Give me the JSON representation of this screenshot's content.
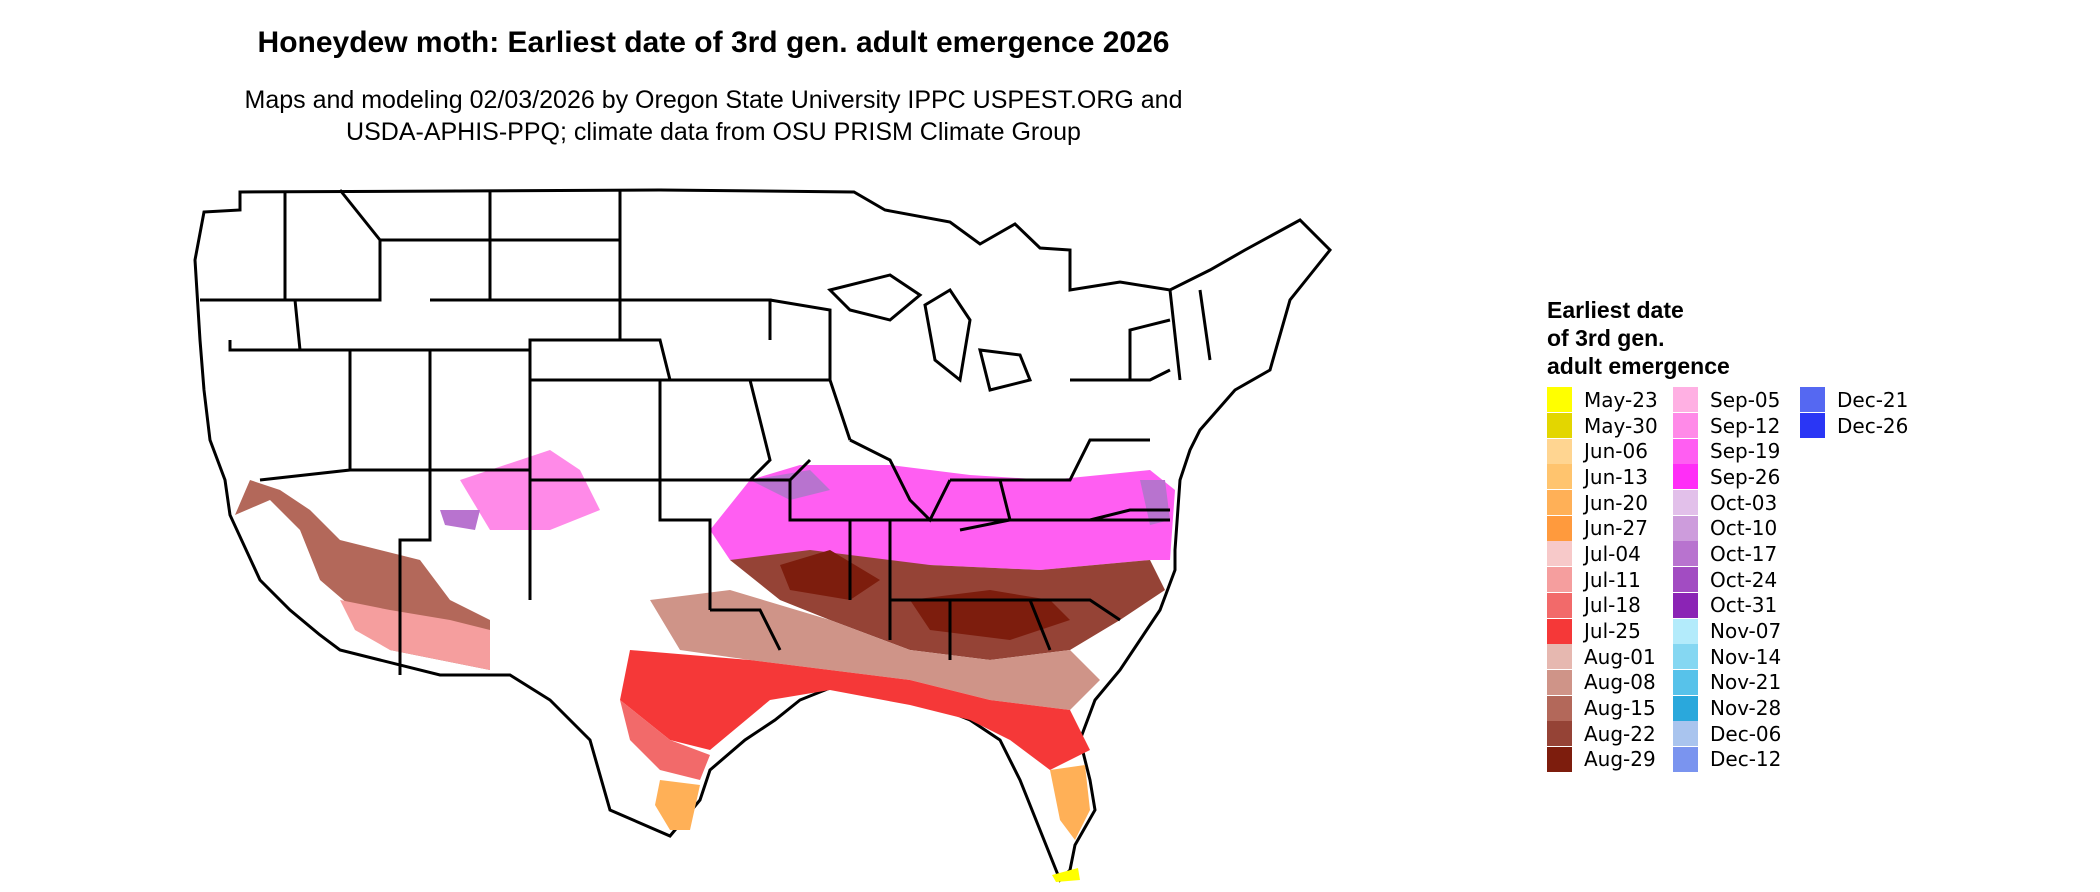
{
  "title": "Honeydew moth: Earliest date of 3rd gen. adult emergence 2026",
  "subtitle_line1": "Maps and modeling 02/03/2026 by Oregon State University IPPC USPEST.ORG and",
  "subtitle_line2": "USDA-APHIS-PPQ; climate data from OSU PRISM Climate Group",
  "legend": {
    "title_lines": [
      "Earliest date",
      "of 3rd gen.",
      "adult emergence"
    ],
    "columns": [
      [
        {
          "label": "May-23",
          "color": "#ffff00"
        },
        {
          "label": "May-30",
          "color": "#e3d600"
        },
        {
          "label": "Jun-06",
          "color": "#ffd591"
        },
        {
          "label": "Jun-13",
          "color": "#ffc46e"
        },
        {
          "label": "Jun-20",
          "color": "#ffb057"
        },
        {
          "label": "Jun-27",
          "color": "#ff9a3d"
        },
        {
          "label": "Jul-04",
          "color": "#f7c9c9"
        },
        {
          "label": "Jul-11",
          "color": "#f59e9e"
        },
        {
          "label": "Jul-18",
          "color": "#f26a6a"
        },
        {
          "label": "Jul-25",
          "color": "#f53838"
        },
        {
          "label": "Aug-01",
          "color": "#e6b8b0"
        },
        {
          "label": "Aug-08",
          "color": "#cf9488"
        },
        {
          "label": "Aug-15",
          "color": "#b3685a"
        },
        {
          "label": "Aug-22",
          "color": "#954336"
        },
        {
          "label": "Aug-29",
          "color": "#7d1d0d"
        }
      ],
      [
        {
          "label": "Sep-05",
          "color": "#ffb0e3"
        },
        {
          "label": "Sep-12",
          "color": "#ff8ae8"
        },
        {
          "label": "Sep-19",
          "color": "#ff5ef2"
        },
        {
          "label": "Sep-26",
          "color": "#ff2ef7"
        },
        {
          "label": "Oct-03",
          "color": "#e2c0ea"
        },
        {
          "label": "Oct-10",
          "color": "#cd9cdc"
        },
        {
          "label": "Oct-17",
          "color": "#b873cf"
        },
        {
          "label": "Oct-24",
          "color": "#a24cc2"
        },
        {
          "label": "Oct-31",
          "color": "#8b24b5"
        },
        {
          "label": "Nov-07",
          "color": "#b3ebfb"
        },
        {
          "label": "Nov-14",
          "color": "#85d7f2"
        },
        {
          "label": "Nov-21",
          "color": "#57c2ea"
        },
        {
          "label": "Nov-28",
          "color": "#2aa8dc"
        },
        {
          "label": "Dec-06",
          "color": "#a9c4ee"
        },
        {
          "label": "Dec-12",
          "color": "#7a94ef"
        }
      ],
      [
        {
          "label": "Dec-21",
          "color": "#5568f2"
        },
        {
          "label": "Dec-26",
          "color": "#2a36f5"
        }
      ]
    ]
  }
}
